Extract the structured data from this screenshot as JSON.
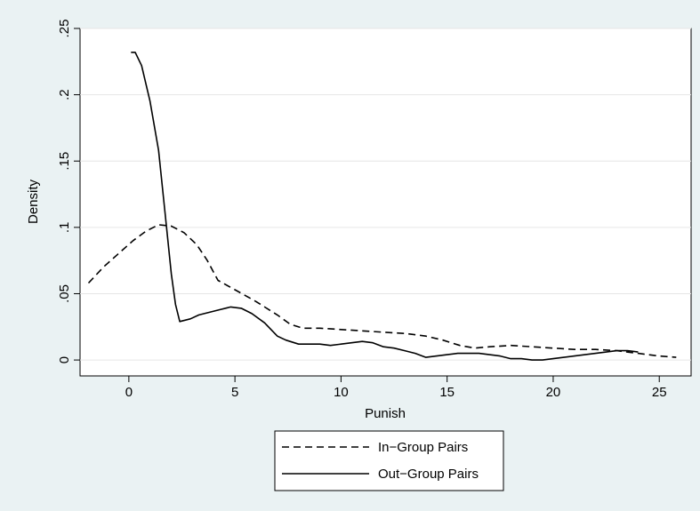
{
  "chart_data": {
    "type": "line",
    "xlabel": "Punish",
    "ylabel": "Density",
    "xlim": [
      -2.3,
      26.5
    ],
    "ylim": [
      -0.012,
      0.25
    ],
    "x_ticks": [
      0,
      5,
      10,
      15,
      20,
      25
    ],
    "x_tick_labels": [
      "0",
      "5",
      "10",
      "15",
      "20",
      "25"
    ],
    "y_ticks": [
      0,
      0.05,
      0.1,
      0.15,
      0.2,
      0.25
    ],
    "y_tick_labels": [
      "0",
      ".05",
      ".1",
      ".15",
      ".2",
      ".25"
    ],
    "grid": "horizontal",
    "legend_position": "bottom",
    "series": [
      {
        "name": "In−Group Pairs",
        "style": "dashed",
        "color": "#000000",
        "x": [
          -1.9,
          -1.2,
          -0.5,
          0.2,
          0.8,
          1.4,
          2.0,
          2.6,
          3.2,
          3.7,
          4.2,
          5.0,
          6.0,
          7.0,
          7.6,
          8.2,
          9.0,
          10.0,
          11.0,
          12.0,
          13.0,
          14.0,
          14.8,
          15.6,
          16.3,
          17.0,
          18.0,
          19.0,
          20.0,
          21.0,
          22.0,
          23.0,
          24.0,
          25.0,
          25.8
        ],
        "y": [
          0.058,
          0.07,
          0.08,
          0.09,
          0.097,
          0.102,
          0.101,
          0.096,
          0.087,
          0.075,
          0.06,
          0.053,
          0.044,
          0.034,
          0.027,
          0.024,
          0.024,
          0.023,
          0.022,
          0.021,
          0.02,
          0.018,
          0.015,
          0.011,
          0.009,
          0.01,
          0.011,
          0.01,
          0.009,
          0.008,
          0.008,
          0.007,
          0.005,
          0.003,
          0.002
        ]
      },
      {
        "name": "Out−Group Pairs",
        "style": "solid",
        "color": "#000000",
        "x": [
          0.1,
          0.3,
          0.6,
          1.0,
          1.4,
          1.7,
          2.0,
          2.2,
          2.4,
          2.9,
          3.3,
          3.8,
          4.3,
          4.8,
          5.3,
          5.8,
          6.4,
          7.0,
          7.4,
          8.0,
          8.5,
          9.0,
          9.5,
          10.0,
          10.5,
          11.0,
          11.5,
          12.0,
          12.5,
          13.0,
          13.5,
          14.0,
          14.5,
          15.0,
          15.5,
          16.0,
          16.5,
          17.0,
          17.5,
          18.0,
          18.5,
          19.0,
          19.5,
          20.0,
          20.5,
          21.0,
          21.5,
          22.0,
          22.5,
          23.0,
          23.5,
          24.0
        ],
        "y": [
          0.232,
          0.232,
          0.222,
          0.195,
          0.158,
          0.112,
          0.065,
          0.042,
          0.029,
          0.031,
          0.034,
          0.036,
          0.038,
          0.04,
          0.039,
          0.035,
          0.028,
          0.018,
          0.015,
          0.012,
          0.012,
          0.012,
          0.011,
          0.012,
          0.013,
          0.014,
          0.013,
          0.01,
          0.009,
          0.007,
          0.005,
          0.002,
          0.003,
          0.004,
          0.005,
          0.005,
          0.005,
          0.004,
          0.003,
          0.001,
          0.001,
          0.0,
          0.0,
          0.001,
          0.002,
          0.003,
          0.004,
          0.005,
          0.006,
          0.007,
          0.007,
          0.006
        ]
      }
    ]
  }
}
